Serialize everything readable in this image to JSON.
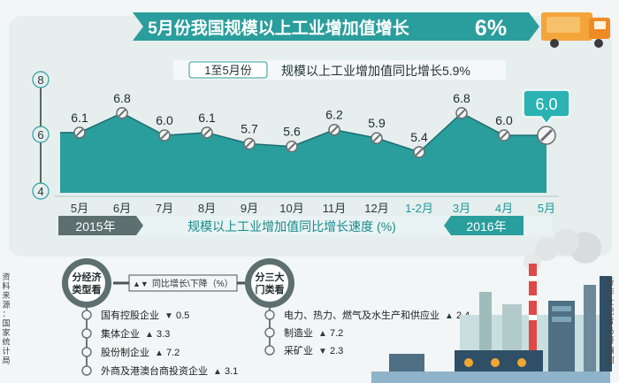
{
  "header": {
    "title": "5月份我国规模以上工业增加值增长",
    "title_value": "6%"
  },
  "subheader": {
    "period": "1至5月份",
    "text": "规模以上工业增加值同比增长5.9%"
  },
  "chart_data": {
    "type": "area",
    "categories": [
      "5月",
      "6月",
      "7月",
      "8月",
      "9月",
      "10月",
      "11月",
      "12月",
      "1-2月",
      "3月",
      "4月",
      "5月"
    ],
    "values": [
      6.1,
      6.8,
      6.0,
      6.1,
      5.7,
      5.6,
      6.2,
      5.9,
      5.4,
      6.8,
      6.0,
      6.0
    ],
    "value_labels": [
      "6.1",
      "6.8",
      "6.0",
      "6.1",
      "5.7",
      "5.6",
      "6.2",
      "5.9",
      "5.4",
      "6.8",
      "6.0",
      "6.0"
    ],
    "highlight_label": "6.0",
    "y_ticks": [
      "4",
      "6",
      "8"
    ],
    "ylim": [
      4,
      8
    ],
    "year_labels": [
      "2015年",
      "2016年"
    ],
    "xlabel": "规模以上工业增加值同比增长速度 (%)",
    "colors": {
      "area": "#2a9d9d",
      "line": "#1e6e6e",
      "y2016": "#1b9a9a",
      "band": "#5e6f6f",
      "accent": "#2bb3b3"
    }
  },
  "breakdown": {
    "legend": "同比增长\\下降（%）",
    "by_ownership": {
      "badge": [
        "分经济",
        "类型看"
      ],
      "items": [
        {
          "label": "国有控股企业",
          "direction": "▼",
          "value": "0.5"
        },
        {
          "label": "集体企业",
          "direction": "▲",
          "value": "3.3"
        },
        {
          "label": "股份制企业",
          "direction": "▲",
          "value": "7.2"
        },
        {
          "label": "外商及港澳台商投资企业",
          "direction": "▲",
          "value": "3.1"
        }
      ]
    },
    "by_sector": {
      "badge": [
        "分三大",
        "门类看"
      ],
      "items": [
        {
          "label": "电力、热力、燃气及水生产和供应业",
          "direction": "▲",
          "value": "2.4"
        },
        {
          "label": "制造业",
          "direction": "▲",
          "value": "7.2"
        },
        {
          "label": "采矿业",
          "direction": "▼",
          "value": "2.3"
        }
      ]
    }
  },
  "source": "资料来源：国家统计局",
  "credit": "新华社记者马研编制"
}
